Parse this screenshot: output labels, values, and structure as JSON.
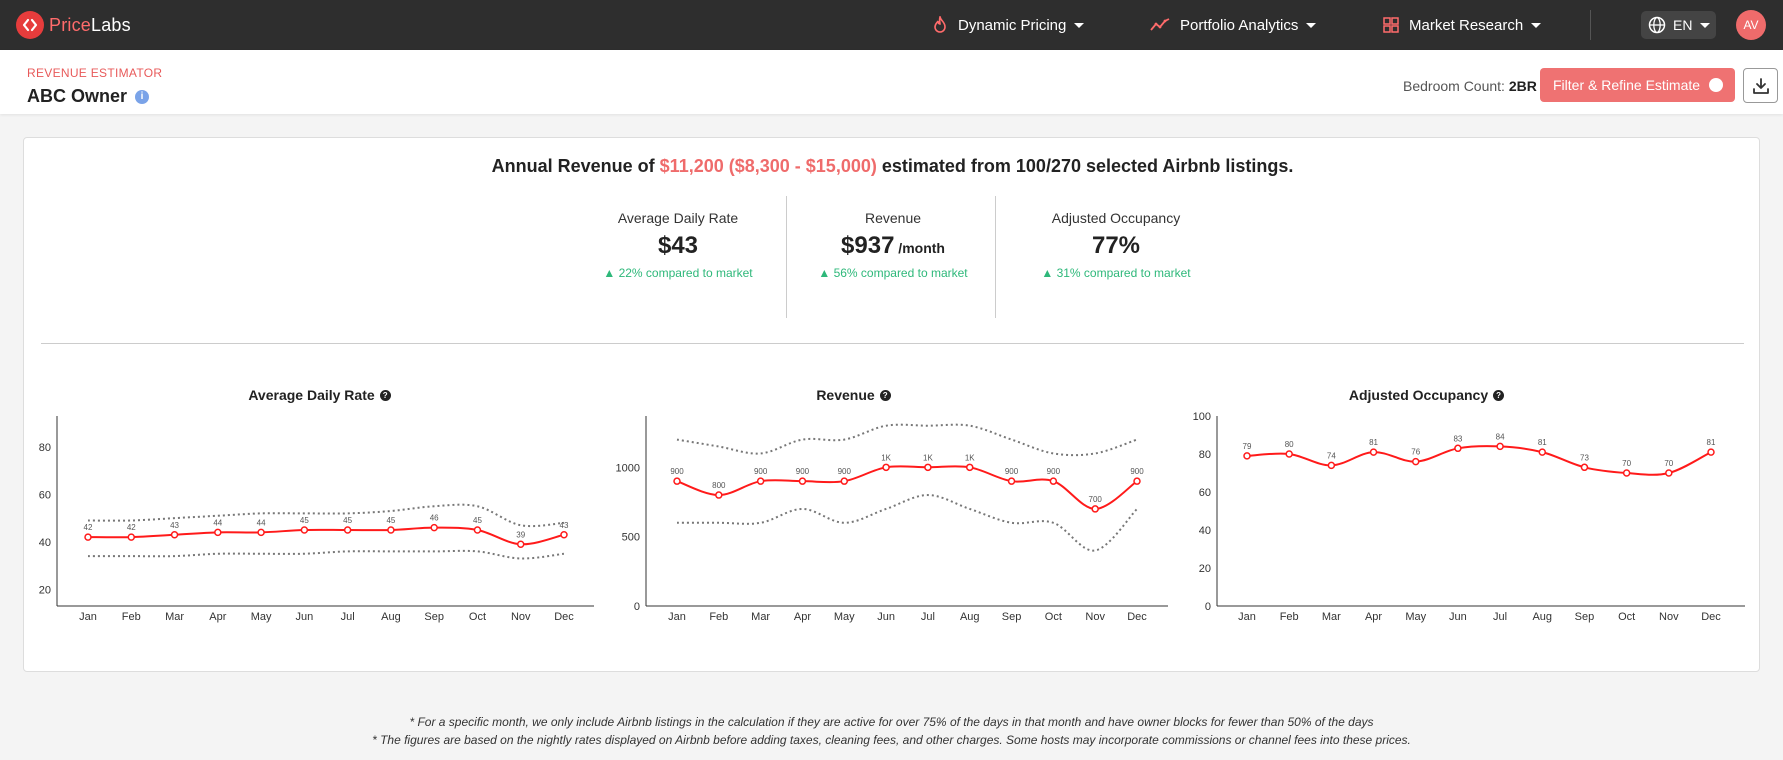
{
  "brand": {
    "name_part1": "Price",
    "name_part2": "Labs"
  },
  "nav": {
    "items": [
      {
        "label": "Dynamic Pricing",
        "icon": "flame-icon"
      },
      {
        "label": "Portfolio Analytics",
        "icon": "trend-icon"
      },
      {
        "label": "Market Research",
        "icon": "grid-icon"
      }
    ],
    "language": "EN",
    "avatar_initials": "AV"
  },
  "header": {
    "eyebrow": "REVENUE ESTIMATOR",
    "title": "ABC Owner",
    "bedroom_label": "Bedroom Count:",
    "bedroom_value": "2BR",
    "filter_button": "Filter & Refine Estimate"
  },
  "summary": {
    "prefix": "Annual Revenue of",
    "amount": "$11,200 ($8,300 - $15,000)",
    "suffix": "estimated from 100/270 selected Airbnb listings."
  },
  "stats": [
    {
      "label": "Average Daily Rate",
      "value": "$43",
      "unit": "",
      "delta": "▲ 22% compared to market"
    },
    {
      "label": "Revenue",
      "value": "$937",
      "unit": " /month",
      "delta": "▲ 56% compared to market"
    },
    {
      "label": "Adjusted Occupancy",
      "value": "77%",
      "unit": "",
      "delta": "▲ 31% compared to market"
    }
  ],
  "colors": {
    "accent": "#ef6b6b",
    "series": "#ff1a1a",
    "band": "#777777",
    "positive": "#2eb87a"
  },
  "chart_data": [
    {
      "type": "line",
      "title": "Average Daily Rate",
      "categories": [
        "Jan",
        "Feb",
        "Mar",
        "Apr",
        "May",
        "Jun",
        "Jul",
        "Aug",
        "Sep",
        "Oct",
        "Nov",
        "Dec"
      ],
      "values": [
        42,
        42,
        43,
        44,
        44,
        45,
        45,
        45,
        46,
        45,
        39,
        43
      ],
      "point_labels": [
        "42",
        "42",
        "43",
        "44",
        "44",
        "45",
        "45",
        "45",
        "46",
        "45",
        "39",
        "43"
      ],
      "upper": [
        49,
        49,
        50,
        51,
        52,
        52,
        52,
        53,
        55,
        55,
        47,
        48
      ],
      "lower": [
        34,
        34,
        34,
        35,
        35,
        35,
        36,
        36,
        36,
        36,
        33,
        35
      ],
      "ylim": [
        13,
        93
      ],
      "yticks": [
        20,
        40,
        60,
        80
      ]
    },
    {
      "type": "line",
      "title": "Revenue",
      "categories": [
        "Jan",
        "Feb",
        "Mar",
        "Apr",
        "May",
        "Jun",
        "Jul",
        "Aug",
        "Sep",
        "Oct",
        "Nov",
        "Dec"
      ],
      "values": [
        900,
        800,
        900,
        900,
        900,
        1000,
        1000,
        1000,
        900,
        900,
        700,
        900
      ],
      "point_labels": [
        "900",
        "800",
        "900",
        "900",
        "900",
        "1K",
        "1K",
        "1K",
        "900",
        "900",
        "700",
        "900"
      ],
      "upper": [
        1200,
        1150,
        1100,
        1200,
        1200,
        1300,
        1300,
        1300,
        1200,
        1100,
        1100,
        1200
      ],
      "lower": [
        600,
        600,
        600,
        700,
        600,
        700,
        800,
        700,
        600,
        600,
        400,
        700
      ],
      "ylim": [
        0,
        1370
      ],
      "yticks": [
        0,
        500,
        1000
      ]
    },
    {
      "type": "line",
      "title": "Adjusted Occupancy",
      "categories": [
        "Jan",
        "Feb",
        "Mar",
        "Apr",
        "May",
        "Jun",
        "Jul",
        "Aug",
        "Sep",
        "Oct",
        "Nov",
        "Dec"
      ],
      "values": [
        79,
        80,
        74,
        81,
        76,
        83,
        84,
        81,
        73,
        70,
        70,
        81
      ],
      "point_labels": [
        "79",
        "80",
        "74",
        "81",
        "76",
        "83",
        "84",
        "81",
        "73",
        "70",
        "70",
        "81"
      ],
      "ylim": [
        0,
        100
      ],
      "yticks": [
        0,
        20,
        40,
        60,
        80,
        100
      ]
    }
  ],
  "footnotes": [
    "* For a specific month, we only include Airbnb listings in the calculation if they are active for over 75% of the days in that month and have owner blocks for fewer than 50% of the days",
    "* The figures are based on the nightly rates displayed on Airbnb before adding taxes, cleaning fees, and other charges. Some hosts may incorporate commissions or channel fees into these prices."
  ]
}
